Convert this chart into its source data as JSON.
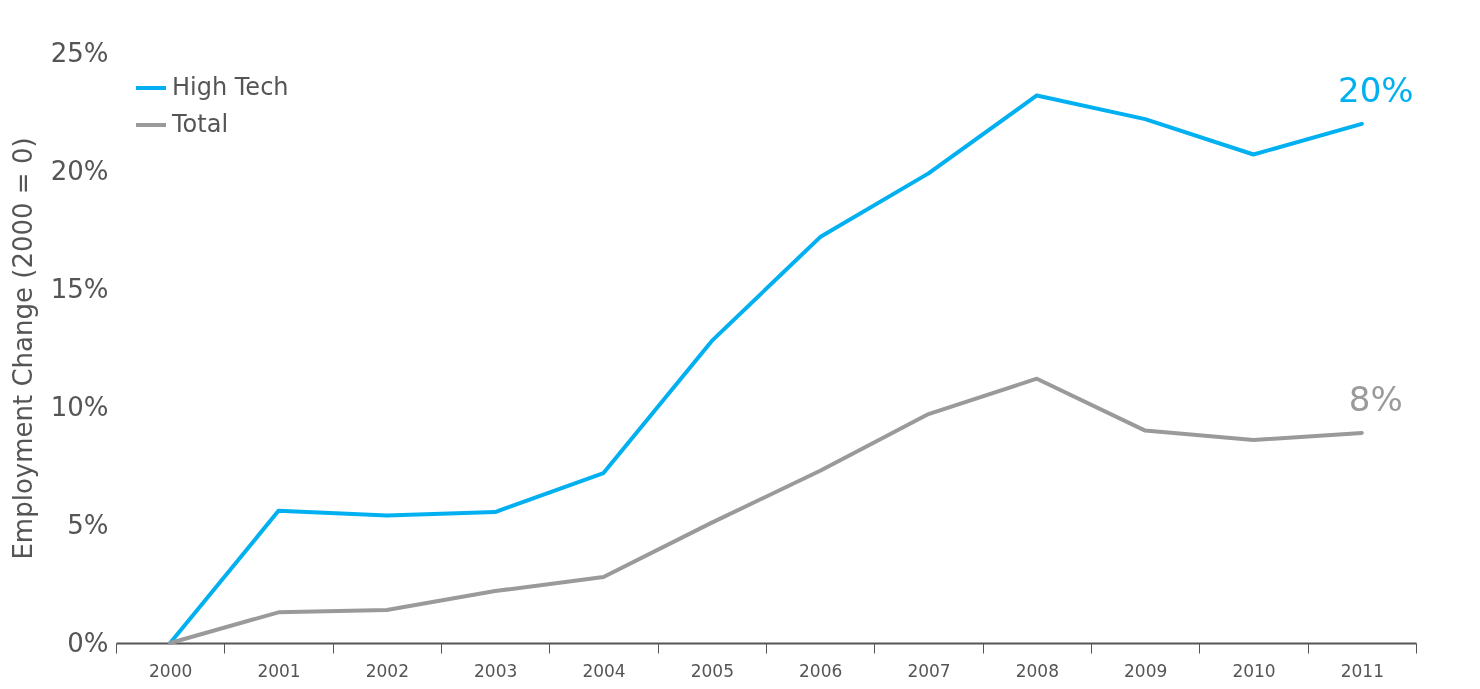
{
  "chart_data": {
    "type": "line",
    "ylabel": "Employment Change (2000 = 0)",
    "categories": [
      "2000",
      "2001",
      "2002",
      "2003",
      "2004",
      "2005",
      "2006",
      "2007",
      "2008",
      "2009",
      "2010",
      "2011"
    ],
    "series": [
      {
        "name": "High Tech",
        "color": "#00b0f0",
        "values": [
          0,
          5.6,
          5.4,
          5.55,
          7.2,
          12.8,
          17.2,
          19.9,
          23.2,
          22.2,
          20.7,
          22.0
        ]
      },
      {
        "name": "Total",
        "color": "#9a9a9a",
        "values": [
          0,
          1.3,
          1.4,
          2.2,
          2.8,
          5.1,
          7.3,
          9.7,
          11.2,
          9.0,
          8.6,
          8.9
        ]
      }
    ],
    "ylim": [
      0,
      25
    ],
    "yticks": [
      {
        "value": 0,
        "label": "0%"
      },
      {
        "value": 5,
        "label": "5%"
      },
      {
        "value": 10,
        "label": "10%"
      },
      {
        "value": 15,
        "label": "15%"
      },
      {
        "value": 20,
        "label": "20%"
      },
      {
        "value": 25,
        "label": "25%"
      }
    ],
    "annotations": [
      {
        "text": "20%",
        "x": "2011",
        "y": 22.0
      },
      {
        "text": "8%",
        "x": "2011",
        "y": 8.9
      }
    ],
    "grid": false,
    "legend": "top left",
    "marker": "none",
    "line_style": "solid"
  }
}
